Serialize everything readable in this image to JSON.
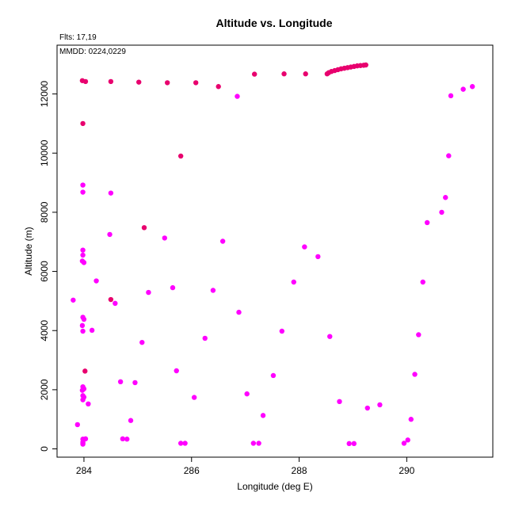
{
  "chart_data": {
    "type": "scatter",
    "title": "Altitude vs. Longitude",
    "xlabel": "Longitude (deg E)",
    "ylabel": "Altitude (m)",
    "xlim": [
      283.5,
      291.6
    ],
    "ylim": [
      -280,
      13650
    ],
    "x_ticks": [
      284,
      286,
      288,
      290
    ],
    "y_ticks": [
      0,
      2000,
      4000,
      6000,
      8000,
      10000,
      12000
    ],
    "grid": false,
    "notes": [
      "Flts: 17,19",
      "MMDD: 0224,0229"
    ],
    "series": [
      {
        "color": "#e8006e",
        "points": [
          [
            283.97,
            12450
          ],
          [
            284.03,
            12420
          ],
          [
            284.5,
            12420
          ],
          [
            285.02,
            12400
          ],
          [
            285.55,
            12380
          ],
          [
            286.08,
            12380
          ],
          [
            286.5,
            12250
          ],
          [
            287.17,
            12670
          ],
          [
            287.72,
            12680
          ],
          [
            288.12,
            12680
          ],
          [
            288.52,
            12680
          ],
          [
            288.55,
            12720
          ],
          [
            288.6,
            12760
          ],
          [
            288.66,
            12790
          ],
          [
            288.72,
            12820
          ],
          [
            288.78,
            12850
          ],
          [
            288.84,
            12870
          ],
          [
            288.9,
            12890
          ],
          [
            288.96,
            12910
          ],
          [
            289.02,
            12930
          ],
          [
            289.08,
            12950
          ],
          [
            289.14,
            12960
          ],
          [
            289.2,
            12970
          ],
          [
            289.24,
            12980
          ],
          [
            283.98,
            11000
          ],
          [
            285.8,
            9900
          ],
          [
            285.12,
            7480
          ],
          [
            284.5,
            5050
          ],
          [
            284.02,
            2630
          ]
        ]
      },
      {
        "color": "#ff00ff",
        "points": [
          [
            286.85,
            11920
          ],
          [
            290.82,
            11940
          ],
          [
            291.05,
            12160
          ],
          [
            291.22,
            12250
          ],
          [
            290.78,
            9910
          ],
          [
            283.98,
            8920
          ],
          [
            283.98,
            8680
          ],
          [
            284.5,
            8650
          ],
          [
            290.72,
            8500
          ],
          [
            290.65,
            8000
          ],
          [
            290.38,
            7650
          ],
          [
            284.48,
            7250
          ],
          [
            285.5,
            7130
          ],
          [
            286.58,
            7020
          ],
          [
            288.1,
            6830
          ],
          [
            283.98,
            6720
          ],
          [
            283.98,
            6550
          ],
          [
            288.35,
            6500
          ],
          [
            283.97,
            6350
          ],
          [
            284.0,
            6300
          ],
          [
            284.23,
            5680
          ],
          [
            287.9,
            5640
          ],
          [
            290.3,
            5640
          ],
          [
            285.65,
            5450
          ],
          [
            286.4,
            5360
          ],
          [
            285.2,
            5290
          ],
          [
            283.8,
            5030
          ],
          [
            284.58,
            4920
          ],
          [
            286.88,
            4620
          ],
          [
            283.98,
            4450
          ],
          [
            284.0,
            4380
          ],
          [
            283.97,
            4170
          ],
          [
            284.15,
            4010
          ],
          [
            283.98,
            3980
          ],
          [
            287.68,
            3980
          ],
          [
            290.22,
            3860
          ],
          [
            288.57,
            3800
          ],
          [
            286.25,
            3740
          ],
          [
            285.08,
            3600
          ],
          [
            285.72,
            2640
          ],
          [
            290.15,
            2520
          ],
          [
            287.52,
            2480
          ],
          [
            284.68,
            2270
          ],
          [
            284.95,
            2240
          ],
          [
            283.98,
            2100
          ],
          [
            284.0,
            2030
          ],
          [
            283.97,
            1980
          ],
          [
            283.98,
            1800
          ],
          [
            284.0,
            1750
          ],
          [
            286.05,
            1740
          ],
          [
            283.98,
            1660
          ],
          [
            287.03,
            1860
          ],
          [
            288.75,
            1600
          ],
          [
            284.08,
            1520
          ],
          [
            289.5,
            1490
          ],
          [
            289.27,
            1380
          ],
          [
            287.33,
            1130
          ],
          [
            290.08,
            1000
          ],
          [
            284.87,
            960
          ],
          [
            283.88,
            820
          ],
          [
            284.72,
            340
          ],
          [
            284.8,
            330
          ],
          [
            283.98,
            330
          ],
          [
            284.03,
            340
          ],
          [
            290.02,
            300
          ],
          [
            283.98,
            230
          ],
          [
            283.98,
            190
          ],
          [
            285.8,
            190
          ],
          [
            285.88,
            190
          ],
          [
            287.15,
            190
          ],
          [
            287.25,
            190
          ],
          [
            288.93,
            180
          ],
          [
            289.02,
            180
          ],
          [
            289.95,
            190
          ],
          [
            283.98,
            160
          ]
        ]
      }
    ]
  }
}
